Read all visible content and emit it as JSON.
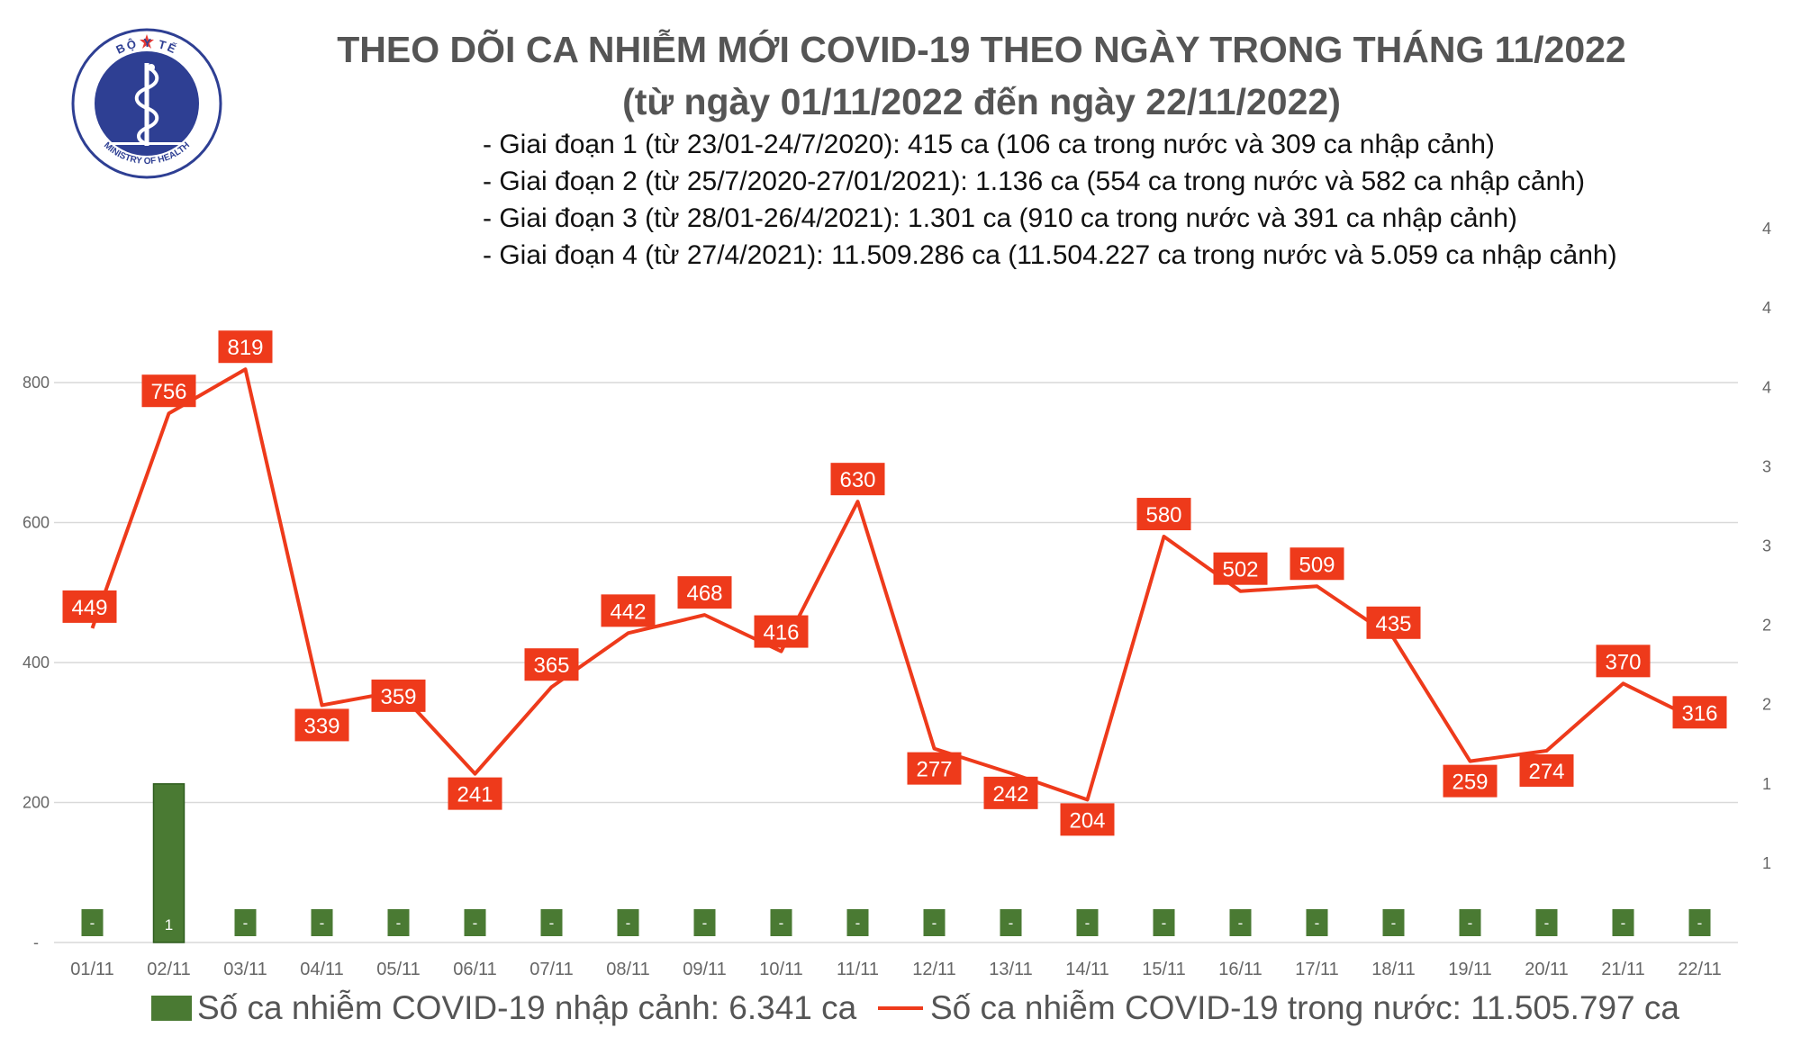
{
  "logo": {
    "top_text": "BỘ Y TẾ",
    "bottom_text": "MINISTRY OF HEALTH",
    "colors": {
      "ring": "#2e3f93",
      "center": "#2e3f93",
      "star": "#e53935"
    }
  },
  "header": {
    "title": "THEO DÕI CA NHIỄM MỚI COVID-19 THEO NGÀY TRONG THÁNG 11/2022",
    "subtitle": "(từ ngày 01/11/2022 đến ngày 22/11/2022)"
  },
  "stages": [
    "- Giai đoạn 1 (từ 23/01-24/7/2020): 415 ca (106 ca trong nước và 309 ca nhập cảnh)",
    "- Giai đoạn 2 (từ 25/7/2020-27/01/2021): 1.136 ca (554 ca trong nước và 582 ca nhập cảnh)",
    "- Giai đoạn 3 (từ 28/01-26/4/2021): 1.301 ca (910 ca trong nước và 391 ca nhập cảnh)",
    "- Giai đoạn 4 (từ 27/4/2021): 11.509.286 ca (11.504.227 ca trong nước và 5.059 ca nhập cảnh)"
  ],
  "chart_data": {
    "type": "bar+line",
    "categories": [
      "01/11",
      "02/11",
      "03/11",
      "04/11",
      "05/11",
      "06/11",
      "07/11",
      "08/11",
      "09/11",
      "10/11",
      "11/11",
      "12/11",
      "13/11",
      "14/11",
      "15/11",
      "16/11",
      "17/11",
      "18/11",
      "19/11",
      "20/11",
      "21/11",
      "22/11"
    ],
    "series": [
      {
        "name": "Số ca nhiễm COVID-19 nhập cảnh: 6.341 ca",
        "type": "bar",
        "axis": "right",
        "values": [
          0,
          1,
          0,
          0,
          0,
          0,
          0,
          0,
          0,
          0,
          0,
          0,
          0,
          0,
          0,
          0,
          0,
          0,
          0,
          0,
          0,
          0
        ],
        "labels": [
          "-",
          "1",
          "-",
          "-",
          "-",
          "-",
          "-",
          "-",
          "-",
          "-",
          "-",
          "-",
          "-",
          "-",
          "-",
          "-",
          "-",
          "-",
          "-",
          "-",
          "-",
          "-"
        ],
        "color": "#4a7a33"
      },
      {
        "name": "Số ca nhiễm COVID-19 trong nước: 11.505.797 ca",
        "type": "line",
        "axis": "left",
        "values": [
          449,
          756,
          819,
          339,
          359,
          241,
          365,
          442,
          468,
          416,
          630,
          277,
          242,
          204,
          580,
          502,
          509,
          435,
          259,
          274,
          370,
          316
        ],
        "color": "#ee3a1b"
      }
    ],
    "left_axis": {
      "ylim": [
        0,
        800
      ],
      "ticks": [
        0,
        200,
        400,
        600,
        800
      ],
      "tick_labels": [
        "-",
        "200",
        "400",
        "600",
        "800"
      ]
    },
    "right_axis": {
      "ylim": [
        0,
        4.2
      ],
      "ticks": [
        0.5,
        1,
        1.5,
        2,
        2.5,
        3,
        3.5,
        4,
        4.5
      ],
      "tick_labels": [
        "1",
        "1",
        "2",
        "2",
        "3",
        "3",
        "4",
        "4",
        "4"
      ]
    },
    "grid": true,
    "legend_position": "bottom"
  }
}
